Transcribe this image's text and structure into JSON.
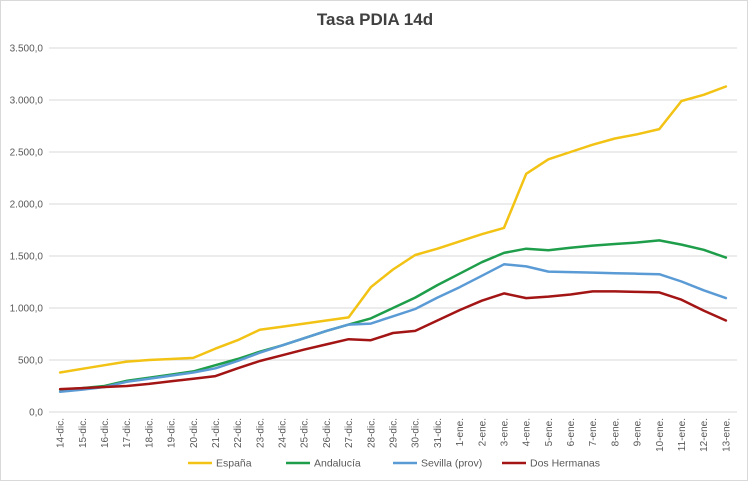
{
  "chart_data": {
    "type": "line",
    "title": "Tasa PDIA 14d",
    "xlabel": "",
    "ylabel": "",
    "ylim": [
      0,
      3500
    ],
    "y_ticks": [
      "0,0",
      "500,0",
      "1.000,0",
      "1.500,0",
      "2.000,0",
      "2.500,0",
      "3.000,0",
      "3.500,0"
    ],
    "grid": true,
    "legend_position": "bottom",
    "categories": [
      "14-dic.",
      "15-dic.",
      "16-dic.",
      "17-dic.",
      "18-dic.",
      "19-dic.",
      "20-dic.",
      "21-dic.",
      "22-dic.",
      "23-dic.",
      "24-dic.",
      "25-dic.",
      "26-dic.",
      "27-dic.",
      "28-dic.",
      "29-dic.",
      "30-dic.",
      "31-dic.",
      "1-ene.",
      "2-ene.",
      "3-ene.",
      "4-ene.",
      "5-ene.",
      "6-ene.",
      "7-ene.",
      "8-ene.",
      "9-ene.",
      "10-ene.",
      "11-ene.",
      "12-ene.",
      "13-ene."
    ],
    "series": [
      {
        "name": "España",
        "color": "#F2C314",
        "values": [
          380,
          415,
          450,
          485,
          500,
          510,
          520,
          610,
          690,
          790,
          820,
          850,
          880,
          910,
          1200,
          1370,
          1510,
          1570,
          1640,
          1710,
          1770,
          2290,
          2430,
          2500,
          2570,
          2630,
          2670,
          2720,
          2990,
          3050,
          3130
        ]
      },
      {
        "name": "Andalucía",
        "color": "#1E9E4A",
        "values": [
          215,
          230,
          250,
          300,
          330,
          360,
          390,
          450,
          510,
          580,
          640,
          710,
          780,
          840,
          900,
          1000,
          1100,
          1220,
          1330,
          1440,
          1530,
          1570,
          1555,
          1580,
          1600,
          1615,
          1630,
          1650,
          1610,
          1560,
          1485
        ]
      },
      {
        "name": "Sevilla (prov)",
        "color": "#5B9BD5",
        "values": [
          195,
          215,
          240,
          290,
          320,
          350,
          380,
          420,
          490,
          570,
          640,
          710,
          780,
          840,
          850,
          920,
          990,
          1100,
          1200,
          1310,
          1420,
          1400,
          1350,
          1345,
          1340,
          1335,
          1330,
          1325,
          1255,
          1170,
          1095
        ]
      },
      {
        "name": "Dos Hermanas",
        "color": "#A31515",
        "values": [
          220,
          230,
          240,
          250,
          270,
          295,
          320,
          345,
          420,
          490,
          545,
          600,
          650,
          700,
          690,
          760,
          780,
          880,
          980,
          1070,
          1140,
          1095,
          1110,
          1130,
          1160,
          1160,
          1155,
          1150,
          1080,
          975,
          880
        ]
      }
    ]
  }
}
